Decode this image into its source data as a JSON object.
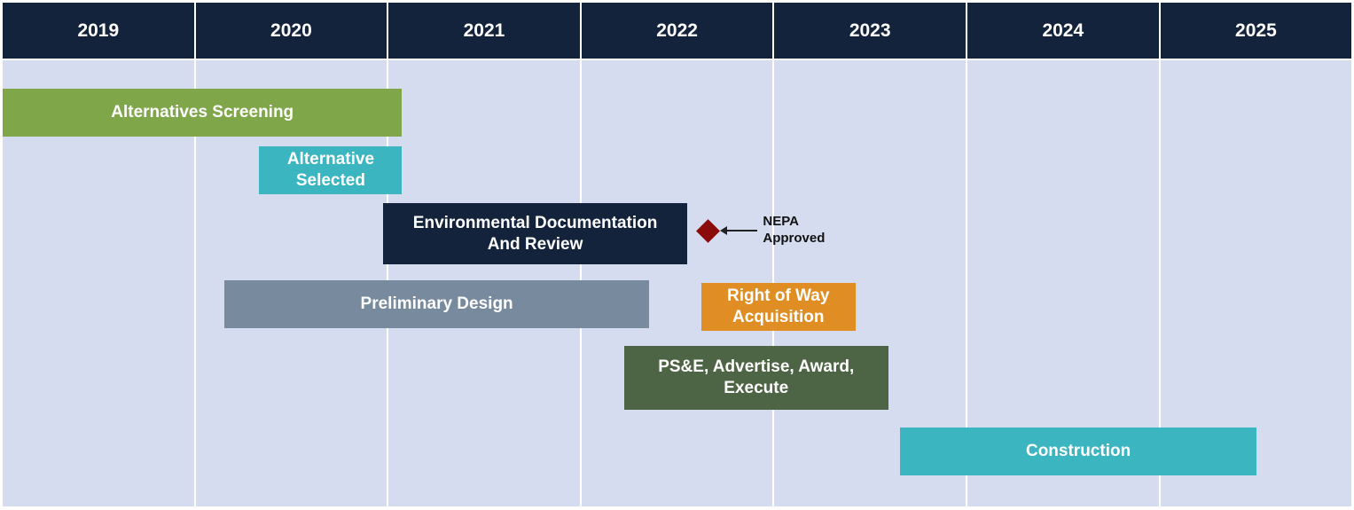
{
  "chart_data": {
    "type": "gantt",
    "years": [
      "2019",
      "2020",
      "2021",
      "2022",
      "2023",
      "2024",
      "2025"
    ],
    "tasks": [
      {
        "label": "Alternatives Screening",
        "start": 2019.0,
        "end": 2021.07,
        "color": "#7fa648"
      },
      {
        "label": "Alternative\nSelected",
        "start": 2020.33,
        "end": 2021.07,
        "color": "#3bb5bf"
      },
      {
        "label": "Environmental Documentation\nAnd Review",
        "start": 2020.97,
        "end": 2022.55,
        "color": "#13233b"
      },
      {
        "label": "Preliminary Design",
        "start": 2020.15,
        "end": 2022.35,
        "color": "#778a9e"
      },
      {
        "label": "Right of Way\nAcquisition",
        "start": 2022.62,
        "end": 2023.42,
        "color": "#e08e24"
      },
      {
        "label": "PS&E, Advertise, Award,\nExecute",
        "start": 2022.22,
        "end": 2023.59,
        "color": "#4e6545"
      },
      {
        "label": "Construction",
        "start": 2023.65,
        "end": 2025.5,
        "color": "#3bb5bf"
      }
    ],
    "milestones": [
      {
        "label": "NEPA\nApproved",
        "date": 2022.6,
        "color": "#8b0b0b"
      }
    ]
  }
}
